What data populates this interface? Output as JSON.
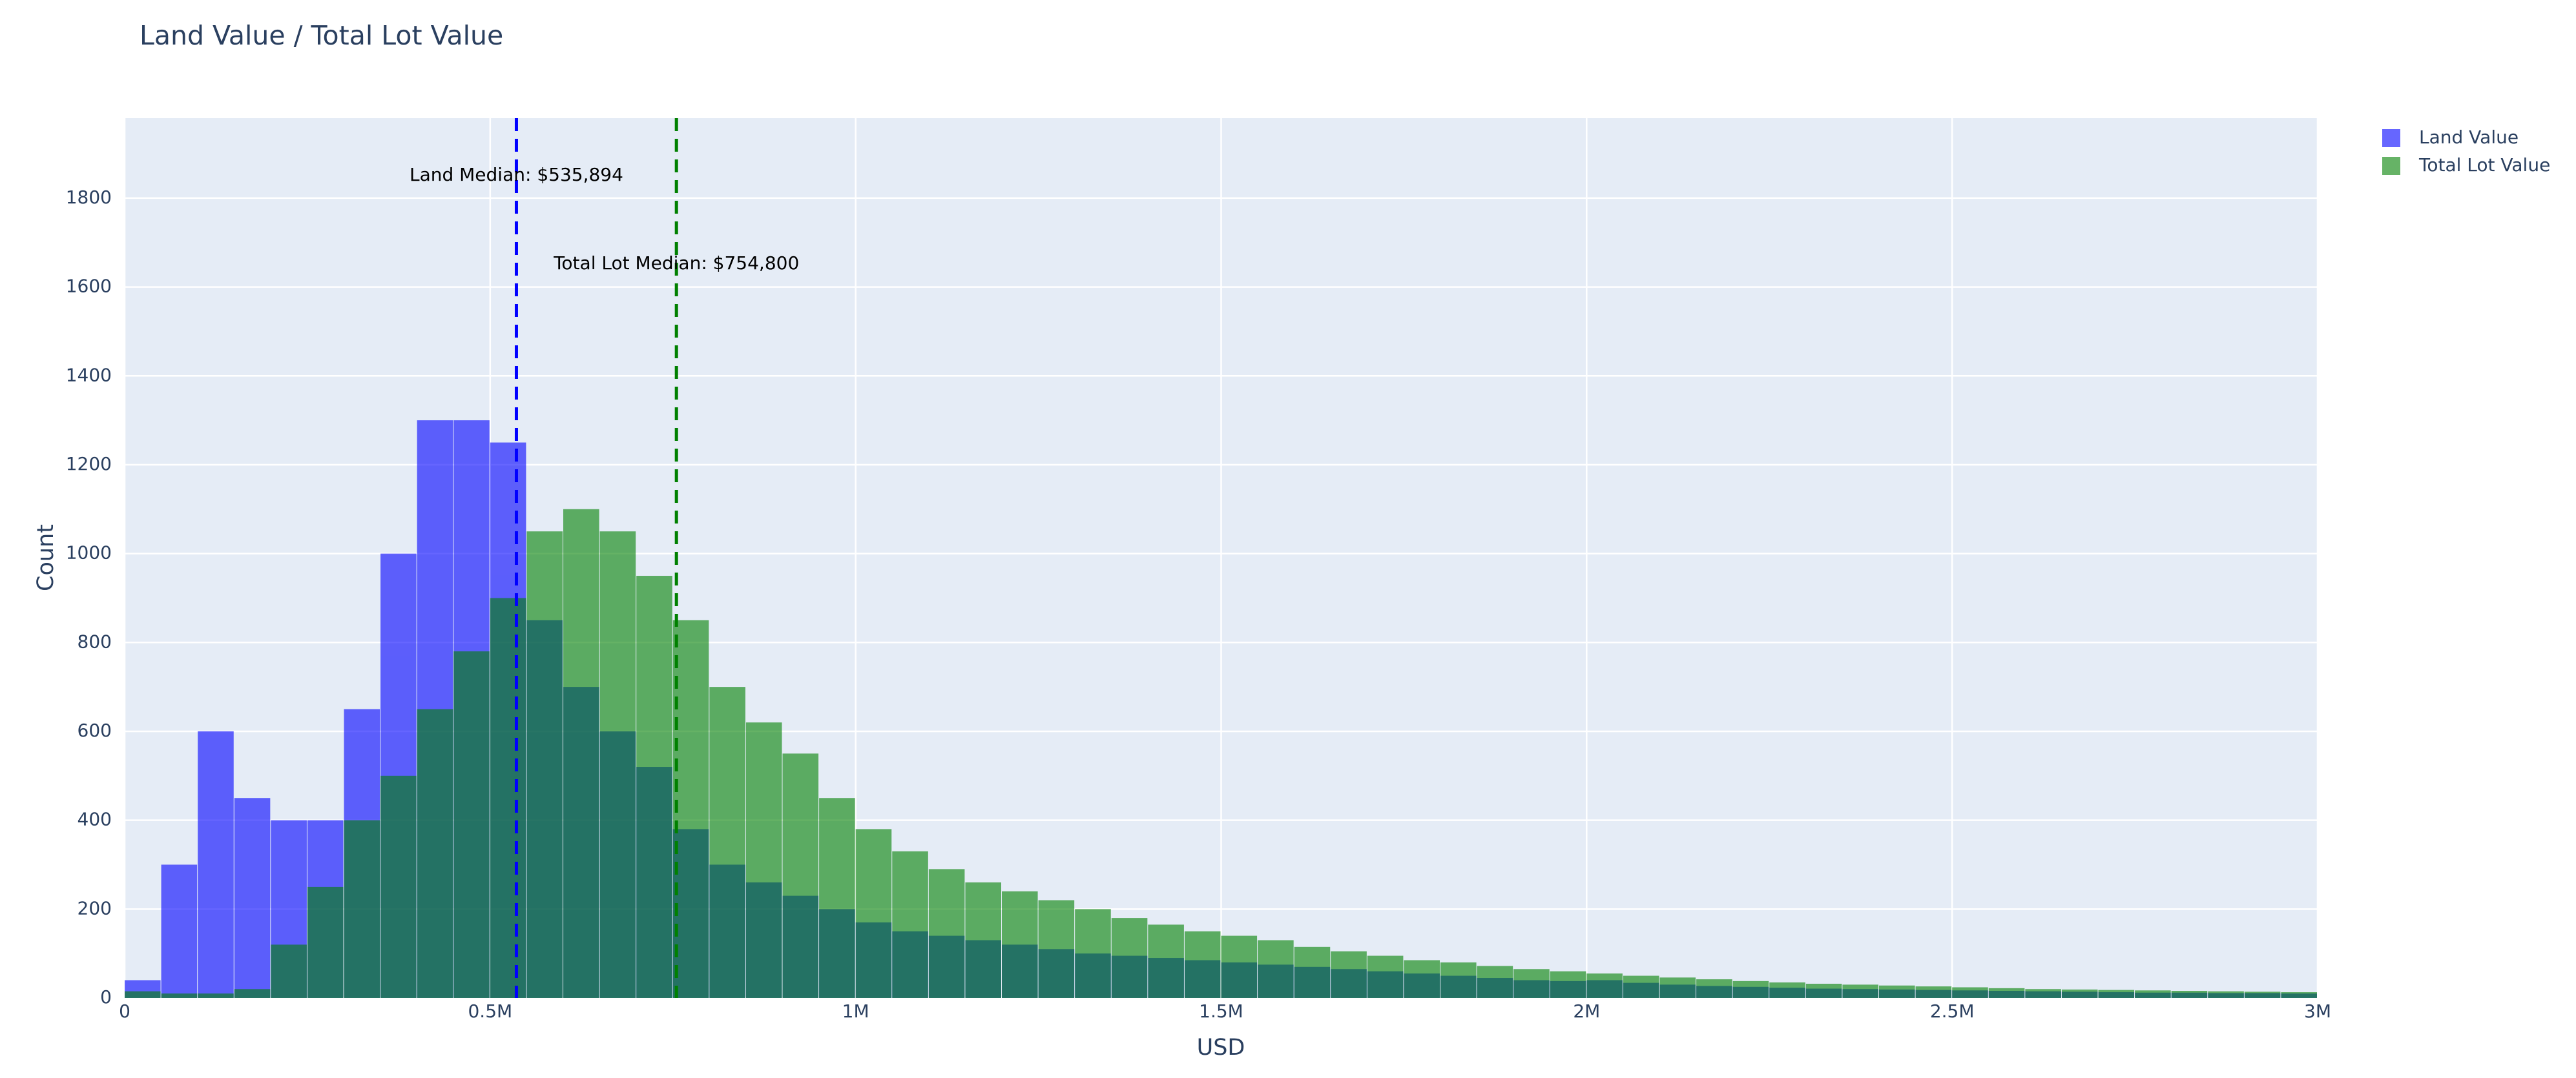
{
  "chart_data": {
    "type": "histogram",
    "title": "Land Value / Total Lot Value",
    "x_label": "USD",
    "y_label": "Count",
    "bins": [
      0,
      50000,
      100000,
      150000,
      200000,
      250000,
      300000,
      350000,
      400000,
      450000,
      500000,
      550000,
      600000,
      650000,
      700000,
      750000,
      800000,
      850000,
      900000,
      950000,
      1000000,
      1050000,
      1100000,
      1150000,
      1200000,
      1250000,
      1300000,
      1350000,
      1400000,
      1450000,
      1500000,
      1550000,
      1600000,
      1650000,
      1700000,
      1750000,
      1800000,
      1850000,
      1900000,
      1950000,
      2000000,
      2050000,
      2100000,
      2150000,
      2200000,
      2250000,
      2300000,
      2350000,
      2400000,
      2450000,
      2500000,
      2550000,
      2600000,
      2650000,
      2700000,
      2750000,
      2800000,
      2850000,
      2900000,
      2950000,
      3000000
    ],
    "series": [
      {
        "name": "Land Value",
        "color": "#0000ff",
        "values": [
          40,
          300,
          600,
          450,
          400,
          400,
          650,
          1000,
          1300,
          1300,
          1250,
          850,
          700,
          600,
          520,
          380,
          300,
          260,
          230,
          200,
          170,
          150,
          140,
          130,
          120,
          110,
          100,
          95,
          90,
          85,
          80,
          75,
          70,
          65,
          60,
          55,
          50,
          45,
          40,
          38,
          40,
          34,
          30,
          27,
          25,
          23,
          21,
          20,
          19,
          18,
          17,
          16,
          15,
          14,
          13,
          12,
          12,
          11,
          11,
          10
        ]
      },
      {
        "name": "Total Lot Value",
        "color": "#008000",
        "values": [
          15,
          10,
          10,
          20,
          120,
          250,
          400,
          500,
          650,
          780,
          900,
          1050,
          1100,
          1050,
          950,
          850,
          700,
          620,
          550,
          450,
          380,
          330,
          290,
          260,
          240,
          220,
          200,
          180,
          165,
          150,
          140,
          130,
          115,
          105,
          95,
          85,
          80,
          72,
          65,
          60,
          55,
          50,
          46,
          42,
          38,
          35,
          32,
          30,
          28,
          26,
          24,
          22,
          20,
          19,
          18,
          17,
          16,
          15,
          14,
          13
        ]
      }
    ],
    "medians": [
      {
        "value": 535894,
        "label": "Land Median: $535,894",
        "color": "#0000ff"
      },
      {
        "value": 754800,
        "label": "Total Lot Median: $754,800",
        "color": "#008000"
      }
    ],
    "xlim": [
      0,
      3000000
    ],
    "xticks": [
      0,
      {
        "value": 500000,
        "label": "0.5M"
      },
      {
        "value": 1000000,
        "label": "1M"
      },
      {
        "value": 1500000,
        "label": "1.5M"
      },
      {
        "value": 2000000,
        "label": "2M"
      },
      {
        "value": 2500000,
        "label": "2.5M"
      },
      {
        "value": 3000000,
        "label": "3M"
      }
    ],
    "ylim": [
      0,
      1980
    ],
    "yticks": [
      0,
      200,
      400,
      600,
      800,
      1000,
      1200,
      1400,
      1600,
      1800
    ],
    "grid": true,
    "opacity": 0.6,
    "legend": "right"
  }
}
